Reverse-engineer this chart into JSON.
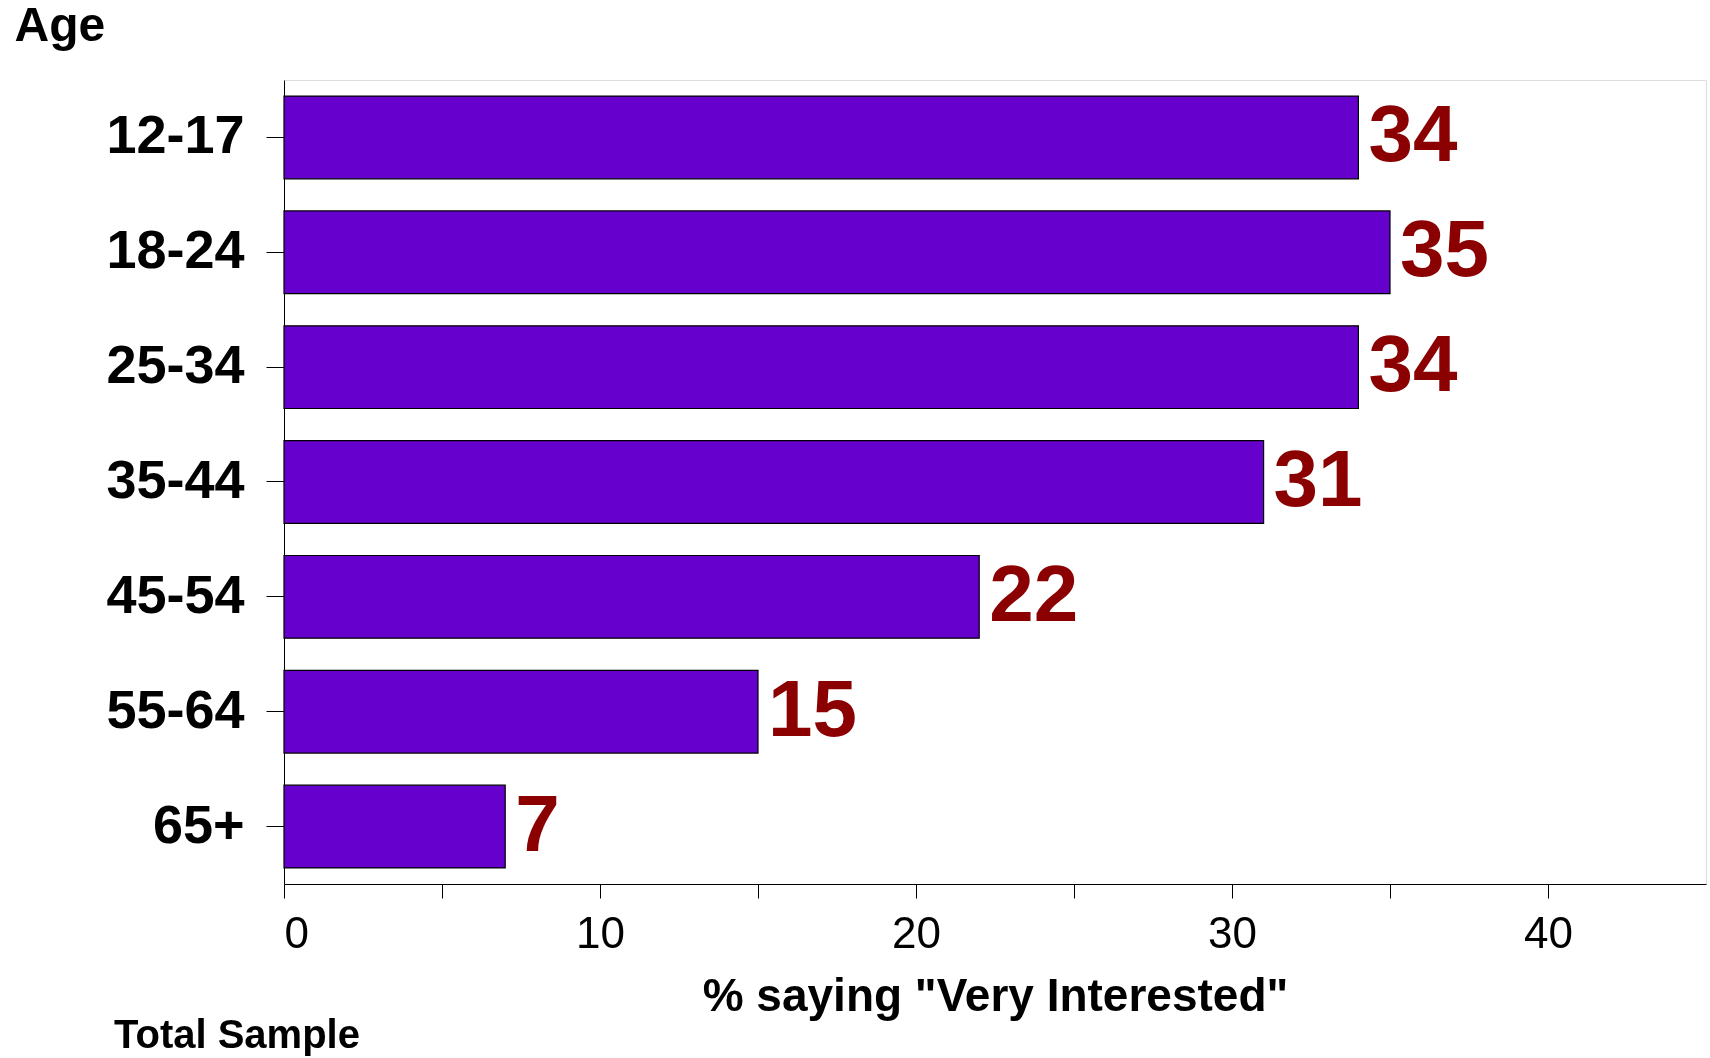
{
  "chart_data": {
    "type": "bar",
    "orientation": "horizontal",
    "ylabel": "Age",
    "xlabel": "% saying \"Very Interested\"",
    "categories": [
      "12-17",
      "18-24",
      "25-34",
      "35-44",
      "45-54",
      "55-64",
      "65+"
    ],
    "values": [
      34,
      35,
      34,
      31,
      22,
      15,
      7
    ],
    "color": "#6600cc",
    "data_labels": true,
    "xlim": [
      0,
      45
    ],
    "xticks": [
      0,
      {
        "value": 5,
        "label": null
      },
      10,
      {
        "value": 15,
        "label": null
      },
      20,
      {
        "value": 25,
        "label": null
      },
      30,
      {
        "value": 35,
        "label": null
      },
      40
    ],
    "grid": false,
    "annotations": [
      "Total Sample"
    ]
  }
}
